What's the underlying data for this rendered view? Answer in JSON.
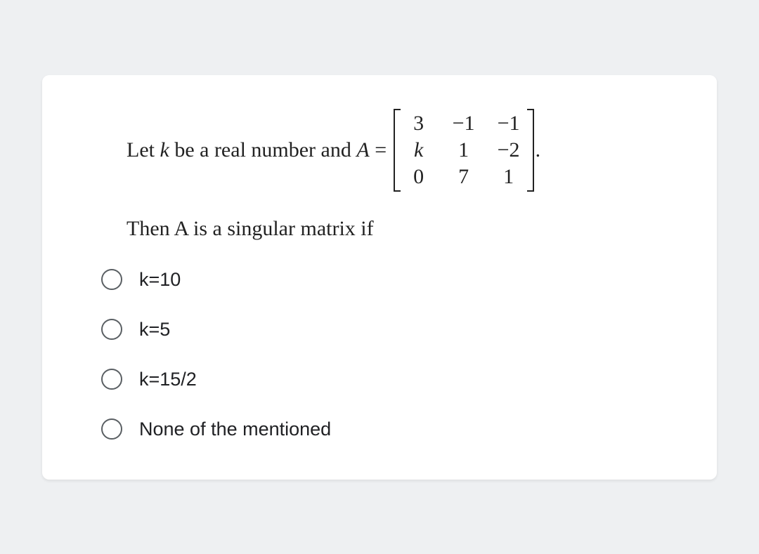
{
  "question": {
    "line1_prefix": "Let ",
    "line1_k": "k",
    "line1_mid": " be a real number and ",
    "line1_A": "A",
    "line1_eq": " = ",
    "matrix": [
      [
        "3",
        "−1",
        "−1"
      ],
      [
        "k",
        "1",
        "−2"
      ],
      [
        "0",
        "7",
        "1"
      ]
    ],
    "line1_suffix": ".",
    "line2_prefix": "Then ",
    "line2_A": "A",
    "line2_suffix": " is a singular matrix if"
  },
  "options": [
    {
      "label": "k=10"
    },
    {
      "label": "k=5"
    },
    {
      "label": "k=15/2"
    },
    {
      "label": "None of the mentioned"
    }
  ],
  "styling": {
    "card_bg": "#ffffff",
    "page_bg": "#eef0f2",
    "question_font": "Times New Roman",
    "question_fontsize": 30,
    "option_font": "Arial",
    "option_fontsize": 27,
    "radio_border_color": "#5a5f63",
    "text_color": "#222"
  }
}
